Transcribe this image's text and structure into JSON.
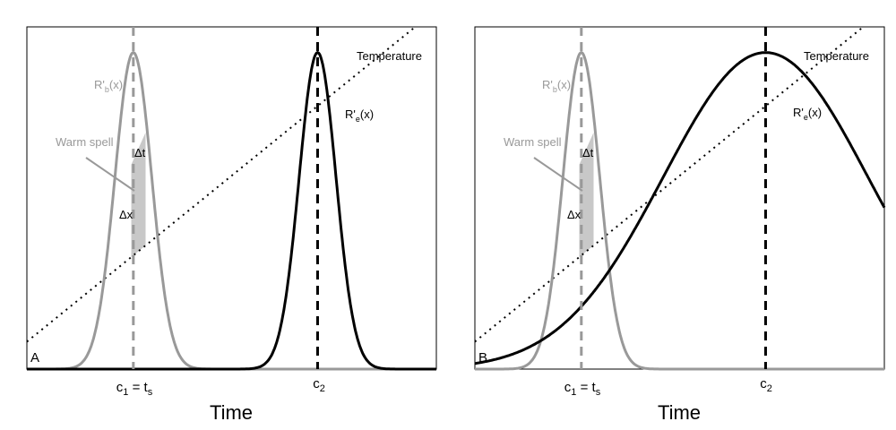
{
  "figure": {
    "xlabel": "Time",
    "colors": {
      "gray": "#999999",
      "black": "#000000",
      "fill": "#c8c8c8"
    }
  },
  "panels": [
    {
      "id": "A",
      "label": "A",
      "c1_label": [
        "c",
        "1",
        " = t",
        "s"
      ],
      "c2_label": [
        "c",
        "2"
      ],
      "rb_label": [
        "R'",
        "b",
        "(x)"
      ],
      "re_label": [
        "R'",
        "e",
        "(x)"
      ],
      "temp_label": "Temperature",
      "warm_label": "Warm spell",
      "dt_label": "Δt",
      "dx_label": "Δx",
      "curve_b": {
        "center": 0.26,
        "sd": 0.045
      },
      "curve_e": {
        "center": 0.71,
        "sd": 0.045
      },
      "temperature": {
        "start": 0.08,
        "end": 1.05
      }
    },
    {
      "id": "B",
      "label": "B",
      "c1_label": [
        "c",
        "1",
        " = t",
        "s"
      ],
      "c2_label": [
        "c",
        "2"
      ],
      "rb_label": [
        "R'",
        "b",
        "(x)"
      ],
      "re_label": [
        "R'",
        "e",
        "(x)"
      ],
      "temp_label": "Temperature",
      "warm_label": "Warm spell",
      "dt_label": "Δt",
      "dx_label": "Δx",
      "curve_b": {
        "center": 0.26,
        "sd": 0.045
      },
      "curve_e": {
        "center": 0.71,
        "sd": 0.25
      },
      "temperature": {
        "start": 0.08,
        "end": 1.05
      }
    }
  ]
}
